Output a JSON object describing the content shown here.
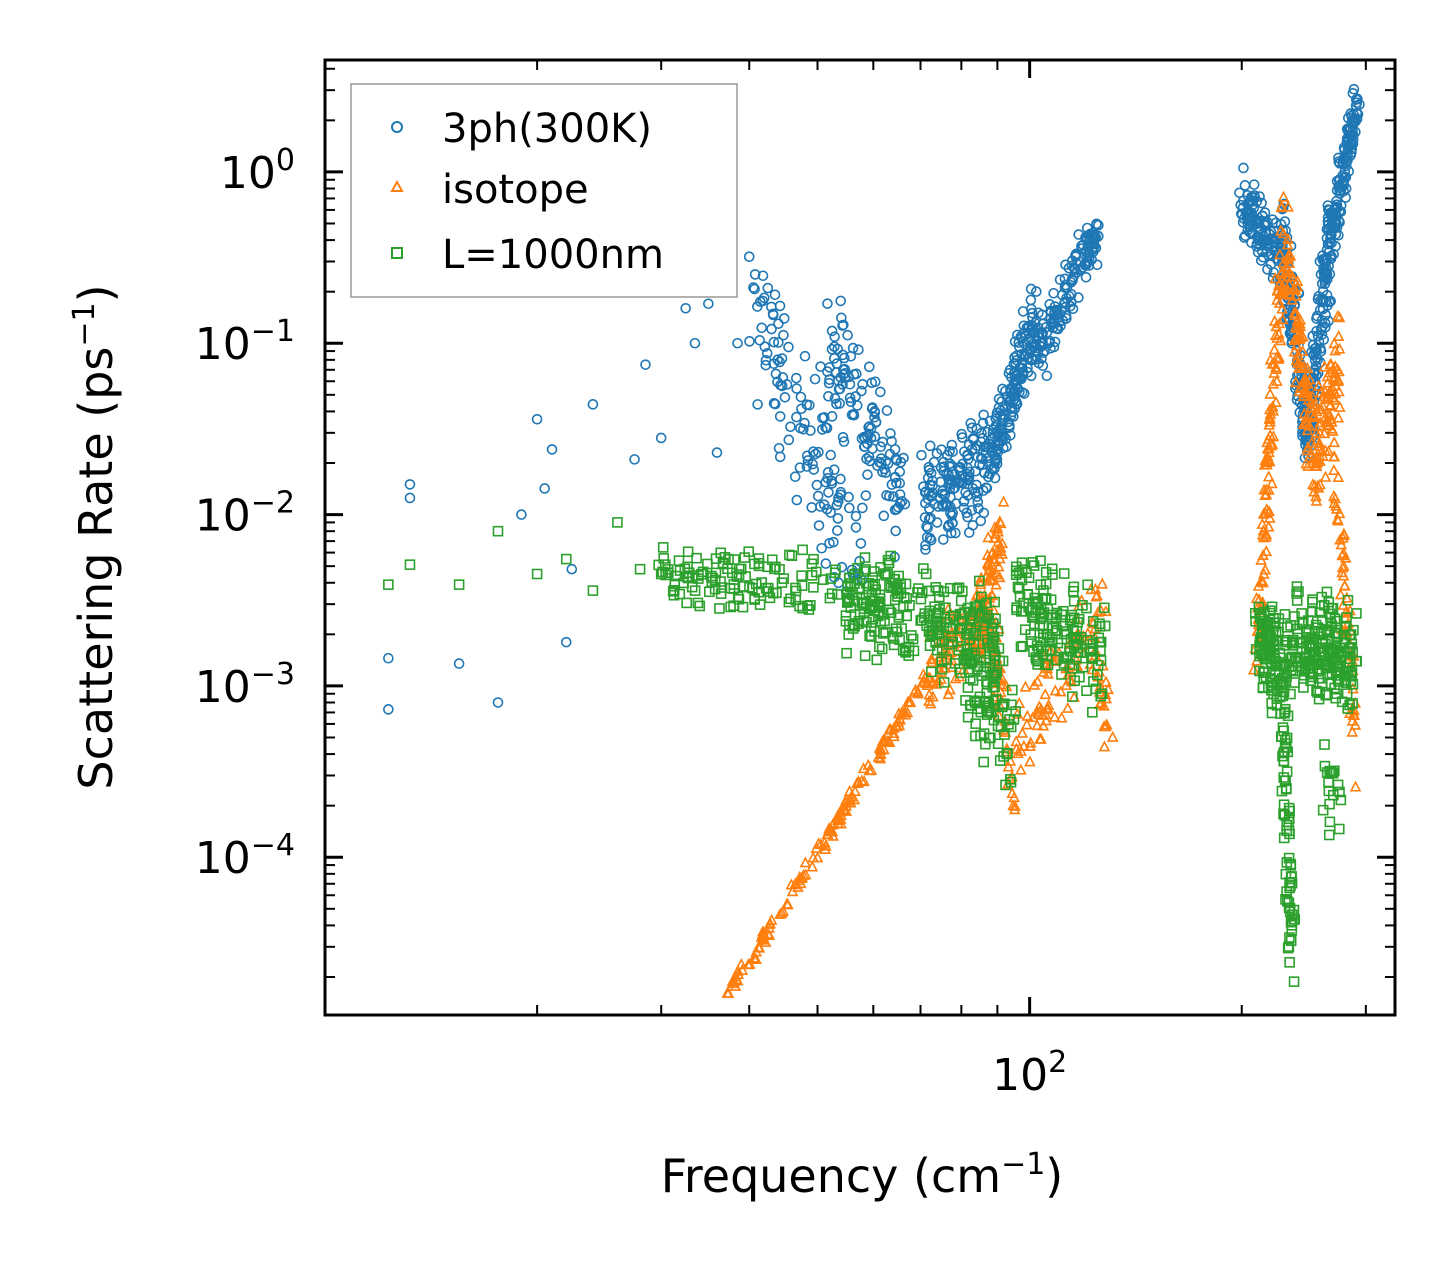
{
  "chart_data": {
    "type": "scatter",
    "xscale": "log",
    "yscale": "log",
    "xlim": [
      10,
      330
    ],
    "ylim": [
      1.2e-05,
      4.5
    ],
    "xlabel": "Frequency (cm",
    "xlabel_sup": "−1",
    "xlabel_end": ")",
    "ylabel": "Scattering Rate (ps",
    "ylabel_sup": "−1",
    "ylabel_end": ")",
    "xtick_labels": [
      {
        "value": 100,
        "base": "10",
        "exp": "2"
      }
    ],
    "ytick_labels": [
      {
        "value": 1,
        "base": "10",
        "exp": "0"
      },
      {
        "value": 0.1,
        "base": "10",
        "exp": "−1"
      },
      {
        "value": 0.01,
        "base": "10",
        "exp": "−2"
      },
      {
        "value": 0.001,
        "base": "10",
        "exp": "−3"
      },
      {
        "value": 0.0001,
        "base": "10",
        "exp": "−4"
      }
    ],
    "legend_position": "top-left",
    "series": [
      {
        "name": "3ph(300K)",
        "marker": "circle",
        "color": "#1f77b4",
        "segments": [
          {
            "x": [
              12.3,
              12.3,
              13.2,
              13.2,
              15.5,
              17.6,
              19.0,
              20.0,
              20.5,
              21.0,
              22.0,
              22.4,
              24.0,
              27.5,
              28.5,
              30.0,
              32.5,
              33.5,
              35.0,
              36.0,
              38.5,
              40.0,
              42.5,
              44.0,
              48.0,
              50.5
            ],
            "y": [
              0.00073,
              0.00145,
              0.015,
              0.0125,
              0.00135,
              0.0008,
              0.01,
              0.036,
              0.0142,
              0.024,
              0.0018,
              0.0048,
              0.044,
              0.021,
              0.075,
              0.028,
              0.16,
              0.1,
              0.17,
              0.023,
              0.1,
              0.32,
              0.21,
              0.13,
              0.084,
              0.073
            ],
            "spread": 0
          },
          {
            "x": [
              40,
              58
            ],
            "y": [
              0.16,
              0.005
            ],
            "spread": 0.55,
            "n": 120
          },
          {
            "x": [
              52,
              66
            ],
            "y": [
              0.1,
              0.012
            ],
            "spread": 0.45,
            "n": 120
          },
          {
            "x": [
              70,
              88
            ],
            "y": [
              0.012,
              0.02
            ],
            "spread": 0.35,
            "n": 160
          },
          {
            "x": [
              88,
              102
            ],
            "y": [
              0.02,
              0.15
            ],
            "spread": 0.25,
            "n": 160
          },
          {
            "x": [
              102,
              125
            ],
            "y": [
              0.08,
              0.45
            ],
            "spread": 0.22,
            "n": 140
          },
          {
            "x": [
              200,
              228
            ],
            "y": [
              0.7,
              0.3
            ],
            "spread": 0.25,
            "n": 120
          },
          {
            "x": [
              228,
              248
            ],
            "y": [
              0.4,
              0.03
            ],
            "spread": 0.35,
            "n": 140
          },
          {
            "x": [
              248,
              268
            ],
            "y": [
              0.03,
              0.5
            ],
            "spread": 0.35,
            "n": 140
          },
          {
            "x": [
              268,
              292
            ],
            "y": [
              0.4,
              2.8
            ],
            "spread": 0.15,
            "n": 120
          }
        ]
      },
      {
        "name": "isotope",
        "marker": "triangle",
        "color": "#ff7f0e",
        "segments": [
          {
            "x": [
              37.5,
              72
            ],
            "y": [
              1.6e-05,
              0.0012
            ],
            "spread": 0.04,
            "n": 150
          },
          {
            "x": [
              72,
              86
            ],
            "y": [
              0.0012,
              0.0025
            ],
            "spread": 0.3,
            "n": 80
          },
          {
            "x": [
              84,
              91
            ],
            "y": [
              0.002,
              0.008
            ],
            "spread": 0.25,
            "n": 70
          },
          {
            "x": [
              86,
              96
            ],
            "y": [
              0.003,
              0.00025
            ],
            "spread": 0.35,
            "n": 60
          },
          {
            "x": [
              96,
              128
            ],
            "y": [
              0.0006,
              0.0025
            ],
            "spread": 0.35,
            "n": 90
          },
          {
            "x": [
              125,
              130
            ],
            "y": [
              0.0012,
              0.0005
            ],
            "spread": 0.2,
            "n": 20
          },
          {
            "x": [
              210,
              230
            ],
            "y": [
              0.0015,
              0.5
            ],
            "spread": 0.3,
            "n": 120
          },
          {
            "x": [
              230,
              255
            ],
            "y": [
              0.35,
              0.018
            ],
            "spread": 0.35,
            "n": 100
          },
          {
            "x": [
              255,
              275
            ],
            "y": [
              0.02,
              0.08
            ],
            "spread": 0.35,
            "n": 80
          },
          {
            "x": [
              270,
              290
            ],
            "y": [
              0.02,
              0.0005
            ],
            "spread": 0.4,
            "n": 60
          }
        ]
      },
      {
        "name": "L=1000nm",
        "marker": "square",
        "color": "#2ca02c",
        "segments": [
          {
            "x": [
              12.3,
              13.2,
              15.5,
              17.6,
              20.0,
              22.0,
              24.0,
              26.0,
              28.0,
              30.0
            ],
            "y": [
              0.0039,
              0.0051,
              0.0039,
              0.008,
              0.0045,
              0.0055,
              0.0036,
              0.009,
              0.0048,
              0.0045
            ],
            "spread": 0
          },
          {
            "x": [
              30,
              65
            ],
            "y": [
              0.0045,
              0.0035
            ],
            "spread": 0.22,
            "n": 160
          },
          {
            "x": [
              55,
              90
            ],
            "y": [
              0.003,
              0.002
            ],
            "spread": 0.35,
            "n": 220
          },
          {
            "x": [
              80,
              96
            ],
            "y": [
              0.0015,
              0.0005
            ],
            "spread": 0.5,
            "n": 90
          },
          {
            "x": [
              96,
              128
            ],
            "y": [
              0.003,
              0.0015
            ],
            "spread": 0.4,
            "n": 160
          },
          {
            "x": [
              210,
              235
            ],
            "y": [
              0.0018,
              0.0012
            ],
            "spread": 0.35,
            "n": 120
          },
          {
            "x": [
              228,
              236
            ],
            "y": [
              0.0008,
              3e-05
            ],
            "spread": 0.3,
            "n": 70
          },
          {
            "x": [
              236,
              290
            ],
            "y": [
              0.0018,
              0.0015
            ],
            "spread": 0.35,
            "n": 200
          },
          {
            "x": [
              262,
              275
            ],
            "y": [
              0.0003,
              0.0002
            ],
            "spread": 0.3,
            "n": 20
          }
        ]
      }
    ]
  }
}
